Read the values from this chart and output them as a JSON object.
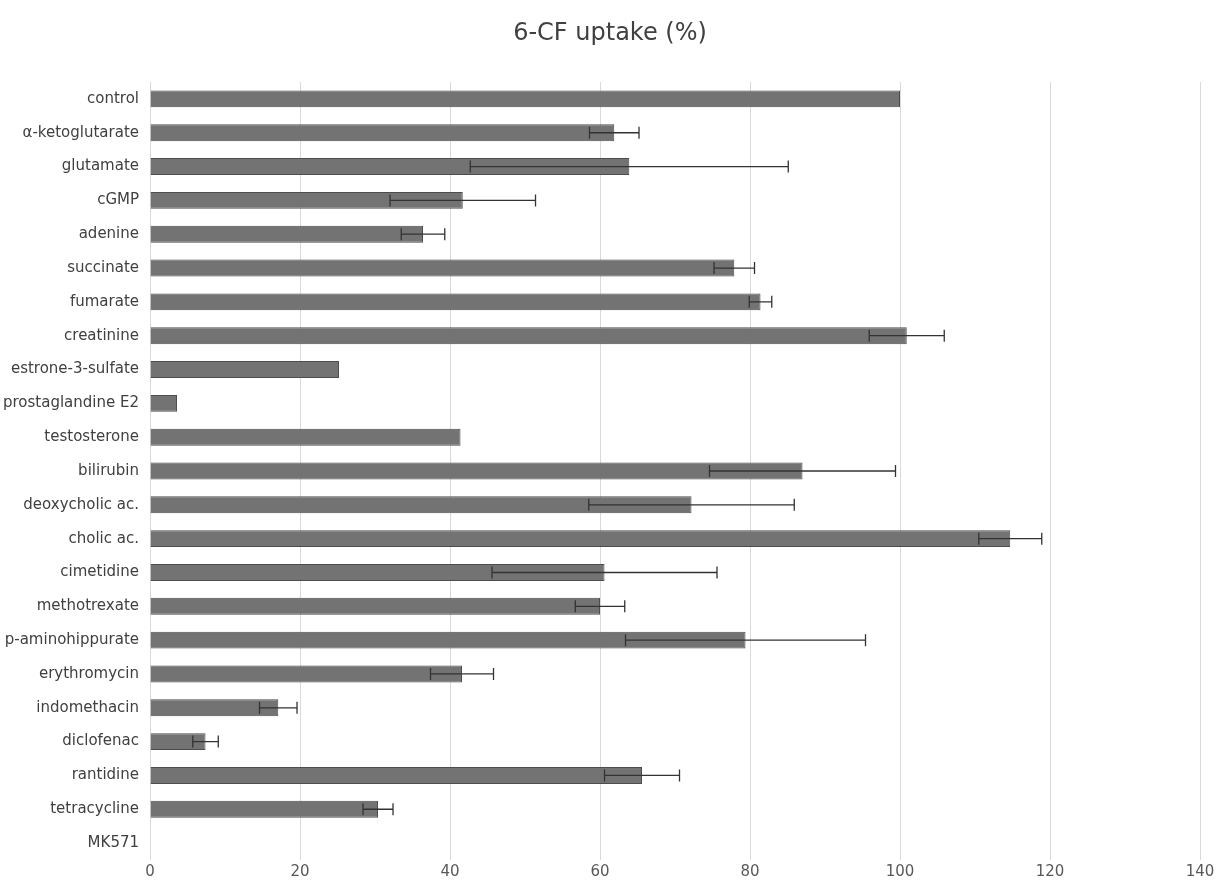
{
  "chart_data": {
    "type": "bar",
    "orientation": "horizontal",
    "title": "6-CF uptake (%)",
    "categories": [
      "control",
      "α-ketoglutarate",
      "glutamate",
      "cGMP",
      "adenine",
      "succinate",
      "fumarate",
      "creatinine",
      "estrone-3-sulfate",
      "prostaglandine E2",
      "testosterone",
      "bilirubin",
      "deoxycholic ac.",
      "cholic ac.",
      "cimetidine",
      "methotrexate",
      "p-aminohippurate",
      "erythromycin",
      "indomethacin",
      "diclofenac",
      "rantidine",
      "tetracycline",
      "MK571"
    ],
    "values": [
      100,
      61.9,
      63.9,
      41.7,
      36.4,
      77.9,
      81.4,
      100.9,
      25.2,
      3.6,
      41.4,
      87.0,
      72.2,
      114.7,
      60.6,
      60.0,
      79.4,
      41.6,
      17.1,
      7.4,
      65.6,
      30.4,
      0
    ],
    "errors": [
      null,
      3.3,
      21.2,
      9.7,
      2.9,
      2.7,
      1.5,
      5.0,
      null,
      null,
      null,
      12.4,
      13.7,
      4.2,
      15.0,
      3.3,
      16.0,
      4.2,
      2.5,
      1.7,
      5.0,
      2.0,
      null
    ],
    "color": "#737373",
    "xlim": [
      0,
      140
    ],
    "xticks": [
      0,
      20,
      40,
      60,
      80,
      100,
      120,
      140
    ],
    "grid": "x",
    "legend": false
  }
}
